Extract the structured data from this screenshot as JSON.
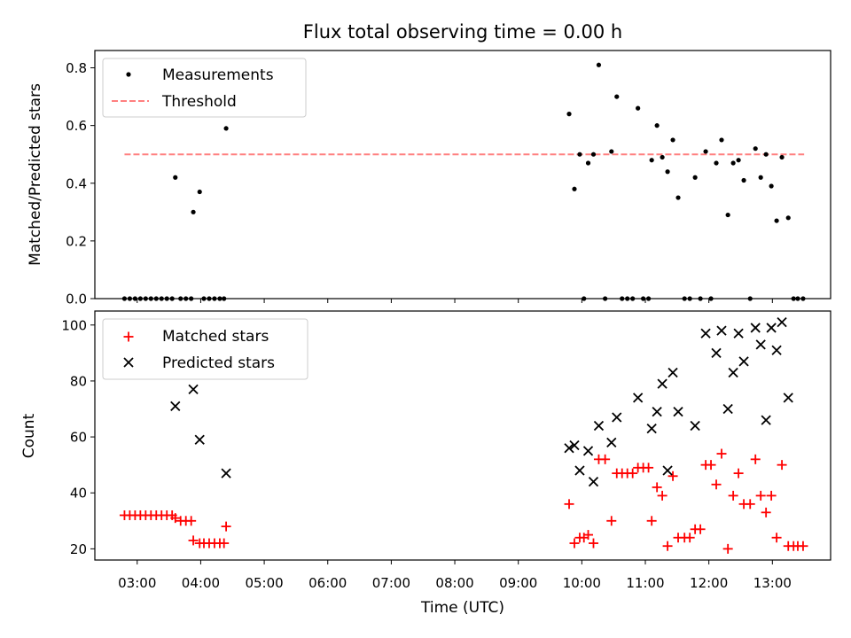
{
  "title": "Flux total observing time = 0.00 h",
  "xlabel": "Time (UTC)",
  "x_ticks": [
    "03:00",
    "04:00",
    "05:00",
    "06:00",
    "07:00",
    "08:00",
    "09:00",
    "10:00",
    "11:00",
    "12:00",
    "13:00"
  ],
  "colors": {
    "measurements": "#000000",
    "threshold": "#ff7f7f",
    "matched": "#ff0000",
    "predicted": "#000000"
  },
  "chart_data": [
    {
      "type": "scatter",
      "ylabel": "Matched/Predicted stars",
      "xlim": [
        "02:20",
        "13:55"
      ],
      "ylim": [
        0,
        0.86
      ],
      "y_ticks": [
        "0.0",
        "0.2",
        "0.4",
        "0.6",
        "0.8"
      ],
      "legend_placement": "top-left",
      "grid": false,
      "threshold": {
        "name": "Threshold",
        "value": 0.5,
        "x_range": [
          "02:48",
          "13:30"
        ],
        "style": "dashed"
      },
      "series": [
        {
          "name": "Measurements",
          "marker": "dot",
          "points": [
            [
              "02:48",
              0.0
            ],
            [
              "02:53",
              0.0
            ],
            [
              "02:58",
              0.0
            ],
            [
              "03:03",
              0.0
            ],
            [
              "03:08",
              0.0
            ],
            [
              "03:13",
              0.0
            ],
            [
              "03:18",
              0.0
            ],
            [
              "03:23",
              0.0
            ],
            [
              "03:28",
              0.0
            ],
            [
              "03:33",
              0.0
            ],
            [
              "03:36",
              0.42
            ],
            [
              "03:41",
              0.0
            ],
            [
              "03:46",
              0.0
            ],
            [
              "03:51",
              0.0
            ],
            [
              "03:53",
              0.3
            ],
            [
              "03:59",
              0.37
            ],
            [
              "04:03",
              0.0
            ],
            [
              "04:08",
              0.0
            ],
            [
              "04:13",
              0.0
            ],
            [
              "04:18",
              0.0
            ],
            [
              "04:22",
              0.0
            ],
            [
              "04:24",
              0.59
            ],
            [
              "09:48",
              0.64
            ],
            [
              "09:53",
              0.38
            ],
            [
              "09:58",
              0.5
            ],
            [
              "10:02",
              0.0
            ],
            [
              "10:06",
              0.47
            ],
            [
              "10:11",
              0.5
            ],
            [
              "10:16",
              0.81
            ],
            [
              "10:22",
              0.0
            ],
            [
              "10:28",
              0.51
            ],
            [
              "10:33",
              0.7
            ],
            [
              "10:38",
              0.0
            ],
            [
              "10:43",
              0.0
            ],
            [
              "10:48",
              0.0
            ],
            [
              "10:53",
              0.66
            ],
            [
              "10:58",
              0.0
            ],
            [
              "11:03",
              0.0
            ],
            [
              "11:06",
              0.48
            ],
            [
              "11:11",
              0.6
            ],
            [
              "11:16",
              0.49
            ],
            [
              "11:21",
              0.44
            ],
            [
              "11:26",
              0.55
            ],
            [
              "11:31",
              0.35
            ],
            [
              "11:37",
              0.0
            ],
            [
              "11:42",
              0.0
            ],
            [
              "11:47",
              0.42
            ],
            [
              "11:52",
              0.0
            ],
            [
              "11:57",
              0.51
            ],
            [
              "12:02",
              0.0
            ],
            [
              "12:07",
              0.47
            ],
            [
              "12:12",
              0.55
            ],
            [
              "12:18",
              0.29
            ],
            [
              "12:23",
              0.47
            ],
            [
              "12:28",
              0.48
            ],
            [
              "12:33",
              0.41
            ],
            [
              "12:39",
              0.0
            ],
            [
              "12:44",
              0.52
            ],
            [
              "12:49",
              0.42
            ],
            [
              "12:54",
              0.5
            ],
            [
              "12:59",
              0.39
            ],
            [
              "13:04",
              0.27
            ],
            [
              "13:09",
              0.49
            ],
            [
              "13:15",
              0.28
            ],
            [
              "13:20",
              0.0
            ],
            [
              "13:24",
              0.0
            ],
            [
              "13:29",
              0.0
            ]
          ]
        }
      ]
    },
    {
      "type": "scatter",
      "ylabel": "Count",
      "xlim": [
        "02:20",
        "13:55"
      ],
      "ylim": [
        16,
        105
      ],
      "y_ticks": [
        "20",
        "40",
        "60",
        "80",
        "100"
      ],
      "legend_placement": "top-left",
      "grid": false,
      "series": [
        {
          "name": "Matched stars",
          "marker": "plus",
          "points": [
            [
              "02:48",
              32
            ],
            [
              "02:53",
              32
            ],
            [
              "02:58",
              32
            ],
            [
              "03:03",
              32
            ],
            [
              "03:08",
              32
            ],
            [
              "03:13",
              32
            ],
            [
              "03:18",
              32
            ],
            [
              "03:23",
              32
            ],
            [
              "03:28",
              32
            ],
            [
              "03:33",
              32
            ],
            [
              "03:36",
              31
            ],
            [
              "03:41",
              30
            ],
            [
              "03:46",
              30
            ],
            [
              "03:51",
              30
            ],
            [
              "03:53",
              23
            ],
            [
              "03:59",
              22
            ],
            [
              "04:03",
              22
            ],
            [
              "04:08",
              22
            ],
            [
              "04:13",
              22
            ],
            [
              "04:18",
              22
            ],
            [
              "04:22",
              22
            ],
            [
              "04:24",
              28
            ],
            [
              "09:48",
              36
            ],
            [
              "09:53",
              22
            ],
            [
              "09:58",
              24
            ],
            [
              "10:02",
              24
            ],
            [
              "10:06",
              25
            ],
            [
              "10:11",
              22
            ],
            [
              "10:16",
              52
            ],
            [
              "10:22",
              52
            ],
            [
              "10:28",
              30
            ],
            [
              "10:33",
              47
            ],
            [
              "10:38",
              47
            ],
            [
              "10:43",
              47
            ],
            [
              "10:48",
              47
            ],
            [
              "10:53",
              49
            ],
            [
              "10:58",
              49
            ],
            [
              "11:03",
              49
            ],
            [
              "11:06",
              30
            ],
            [
              "11:11",
              42
            ],
            [
              "11:16",
              39
            ],
            [
              "11:21",
              21
            ],
            [
              "11:26",
              46
            ],
            [
              "11:31",
              24
            ],
            [
              "11:37",
              24
            ],
            [
              "11:42",
              24
            ],
            [
              "11:47",
              27
            ],
            [
              "11:52",
              27
            ],
            [
              "11:57",
              50
            ],
            [
              "12:02",
              50
            ],
            [
              "12:07",
              43
            ],
            [
              "12:12",
              54
            ],
            [
              "12:18",
              20
            ],
            [
              "12:23",
              39
            ],
            [
              "12:28",
              47
            ],
            [
              "12:33",
              36
            ],
            [
              "12:39",
              36
            ],
            [
              "12:44",
              52
            ],
            [
              "12:49",
              39
            ],
            [
              "12:54",
              33
            ],
            [
              "12:59",
              39
            ],
            [
              "13:04",
              24
            ],
            [
              "13:09",
              50
            ],
            [
              "13:15",
              21
            ],
            [
              "13:20",
              21
            ],
            [
              "13:24",
              21
            ],
            [
              "13:29",
              21
            ]
          ]
        },
        {
          "name": "Predicted stars",
          "marker": "x",
          "points": [
            [
              "03:36",
              71
            ],
            [
              "03:53",
              77
            ],
            [
              "03:59",
              59
            ],
            [
              "04:24",
              47
            ],
            [
              "09:48",
              56
            ],
            [
              "09:53",
              57
            ],
            [
              "09:58",
              48
            ],
            [
              "10:06",
              55
            ],
            [
              "10:11",
              44
            ],
            [
              "10:16",
              64
            ],
            [
              "10:28",
              58
            ],
            [
              "10:33",
              67
            ],
            [
              "10:53",
              74
            ],
            [
              "11:06",
              63
            ],
            [
              "11:11",
              69
            ],
            [
              "11:16",
              79
            ],
            [
              "11:21",
              48
            ],
            [
              "11:26",
              83
            ],
            [
              "11:31",
              69
            ],
            [
              "11:47",
              64
            ],
            [
              "11:57",
              97
            ],
            [
              "12:07",
              90
            ],
            [
              "12:12",
              98
            ],
            [
              "12:18",
              70
            ],
            [
              "12:23",
              83
            ],
            [
              "12:28",
              97
            ],
            [
              "12:33",
              87
            ],
            [
              "12:44",
              99
            ],
            [
              "12:49",
              93
            ],
            [
              "12:54",
              66
            ],
            [
              "12:59",
              99
            ],
            [
              "13:04",
              91
            ],
            [
              "13:09",
              101
            ],
            [
              "13:15",
              74
            ]
          ]
        }
      ]
    }
  ]
}
